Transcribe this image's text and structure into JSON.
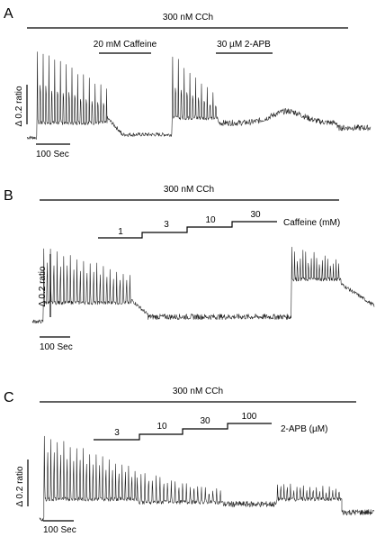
{
  "chart_data": [
    {
      "type": "line",
      "panel": "A",
      "bars": [
        "300 nM CCh",
        "20 mM Caffeine",
        "30 µM 2-APB"
      ],
      "scale_y_label": "Δ 0.2 ratio",
      "scale_x_label": "100 Sec",
      "steps": [],
      "steps_unit": "",
      "series": [
        {
          "segments": [
            {
              "t": [
                0,
                18
              ],
              "mode": "baseline",
              "level": 0.05
            },
            {
              "t": [
                18,
                145
              ],
              "mode": "osc",
              "base": 0.2,
              "amp_start": 0.75,
              "amp_end": 0.35,
              "period": 5.2
            },
            {
              "t": [
                145,
                170
              ],
              "mode": "decay",
              "from": 0.25,
              "to": 0.1
            },
            {
              "t": [
                170,
                262
              ],
              "mode": "baseline",
              "level": 0.08
            },
            {
              "t": [
                262,
                345
              ],
              "mode": "osc",
              "base": 0.25,
              "amp_start": 0.65,
              "amp_end": 0.2,
              "period": 5.2
            },
            {
              "t": [
                345,
                560
              ],
              "mode": "noise",
              "level": 0.2,
              "bump_at": 470,
              "bump_h": 0.12,
              "bump_w": 40
            },
            {
              "t": [
                560,
                620
              ],
              "mode": "noise",
              "level": 0.15
            }
          ]
        }
      ]
    },
    {
      "type": "line",
      "panel": "B",
      "bars": [
        "300 nM CCh"
      ],
      "scale_y_label": "Δ 0.2 ratio",
      "scale_x_label": "100 Sec",
      "steps": [
        "1",
        "3",
        "10",
        "30"
      ],
      "steps_unit": "Caffeine (mM)",
      "series": [
        {
          "segments": [
            {
              "t": [
                0,
                20
              ],
              "mode": "baseline",
              "level": 0.05
            },
            {
              "t": [
                20,
                180
              ],
              "mode": "osc",
              "base": 0.25,
              "amp_start": 0.6,
              "amp_end": 0.3,
              "period": 6
            },
            {
              "t": [
                180,
                210
              ],
              "mode": "decay",
              "from": 0.28,
              "to": 0.12
            },
            {
              "t": [
                210,
                470
              ],
              "mode": "noise",
              "level": 0.1
            },
            {
              "t": [
                470,
                560
              ],
              "mode": "osc",
              "base": 0.5,
              "amp_start": 0.35,
              "amp_end": 0.2,
              "period": 5
            },
            {
              "t": [
                560,
                620
              ],
              "mode": "decay",
              "from": 0.45,
              "to": 0.22
            }
          ]
        }
      ]
    },
    {
      "type": "line",
      "panel": "C",
      "bars": [
        "300 nM CCh"
      ],
      "scale_y_label": "Δ 0.2 ratio",
      "scale_x_label": "100 Sec",
      "steps": [
        "3",
        "10",
        "30",
        "100"
      ],
      "steps_unit": "2-APB (µM)",
      "series": [
        {
          "segments": [
            {
              "t": [
                0,
                8
              ],
              "mode": "baseline",
              "level": 0.05
            },
            {
              "t": [
                8,
                180
              ],
              "mode": "osc",
              "base": 0.25,
              "amp_start": 0.65,
              "amp_end": 0.3,
              "period": 6
            },
            {
              "t": [
                180,
                340
              ],
              "mode": "osc",
              "base": 0.22,
              "amp_start": 0.3,
              "amp_end": 0.1,
              "period": 7
            },
            {
              "t": [
                340,
                440
              ],
              "mode": "noise",
              "level": 0.2
            },
            {
              "t": [
                440,
                560
              ],
              "mode": "osc",
              "base": 0.25,
              "amp_start": 0.15,
              "amp_end": 0.1,
              "period": 6
            },
            {
              "t": [
                560,
                620
              ],
              "mode": "noise",
              "level": 0.12
            }
          ]
        }
      ]
    }
  ]
}
